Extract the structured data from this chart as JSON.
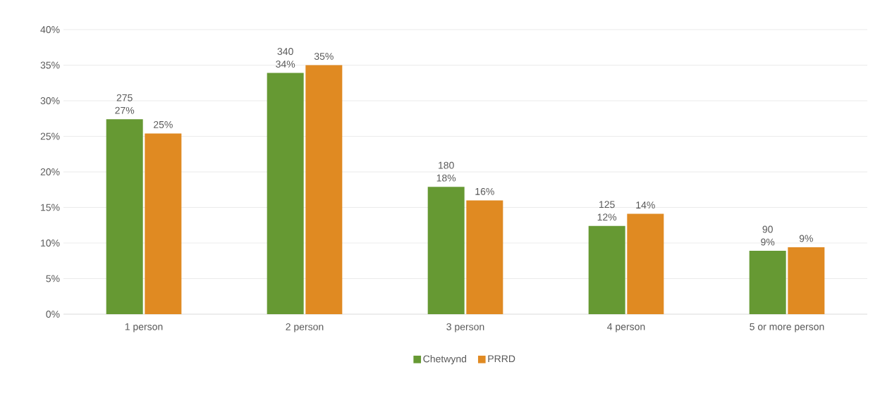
{
  "chart_data": {
    "type": "bar",
    "categories": [
      "1 person",
      "2 person",
      "3 person",
      "4 person",
      "5 or more person"
    ],
    "series": [
      {
        "name": "Chetwynd",
        "color": "#669933",
        "values": [
          27.4,
          33.9,
          17.9,
          12.4,
          8.9
        ],
        "value_labels": [
          "275 27%",
          "340 34%",
          "180 18%",
          "125 12%",
          "90 9%"
        ]
      },
      {
        "name": "PRRD",
        "color": "#e08a22",
        "values": [
          25.4,
          35.0,
          16.0,
          14.1,
          9.4
        ],
        "value_labels": [
          "25%",
          "35%",
          "16%",
          "14%",
          "9%"
        ]
      }
    ],
    "ylim": [
      0,
      40
    ],
    "yticks": [
      {
        "value": 0,
        "label": "0%"
      },
      {
        "value": 5,
        "label": "5%"
      },
      {
        "value": 10,
        "label": "10%"
      },
      {
        "value": 15,
        "label": "15%"
      },
      {
        "value": 20,
        "label": "20%"
      },
      {
        "value": 25,
        "label": "25%"
      },
      {
        "value": 30,
        "label": "30%"
      },
      {
        "value": 35,
        "label": "35%"
      },
      {
        "value": 40,
        "label": "40%"
      }
    ],
    "grid": "y",
    "legend": "bottom"
  }
}
